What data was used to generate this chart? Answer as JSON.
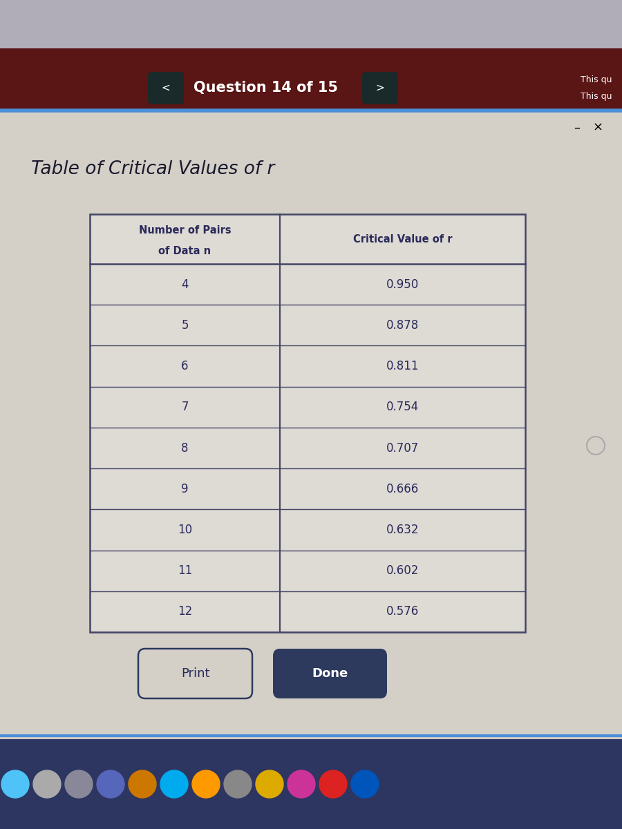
{
  "title": "Table of Critical Values of r",
  "question_text": "Question 14 of 15",
  "col1_header_line1": "Number of Pairs",
  "col1_header_line2": "of Data n",
  "col2_header": "Critical Value of r",
  "n_values": [
    4,
    5,
    6,
    7,
    8,
    9,
    10,
    11,
    12
  ],
  "r_values": [
    "0.950",
    "0.878",
    "0.811",
    "0.754",
    "0.707",
    "0.666",
    "0.632",
    "0.602",
    "0.576"
  ],
  "bg_color_top": "#5a1515",
  "bg_color_gray": "#b0adb8",
  "bg_color_main": "#d4cfc7",
  "bg_color_table_inner": "#dedad4",
  "text_color_question": "#ffffff",
  "text_color_title": "#1a1a2e",
  "text_color_table": "#2a2a5a",
  "button_done_color": "#2d3a5e",
  "taskbar_color": "#2d3561",
  "thin_line_color": "#4a90d9",
  "this_qu_line1": "This qu",
  "this_qu_line2": "This qu",
  "minus_text": "–",
  "x_text": "×"
}
